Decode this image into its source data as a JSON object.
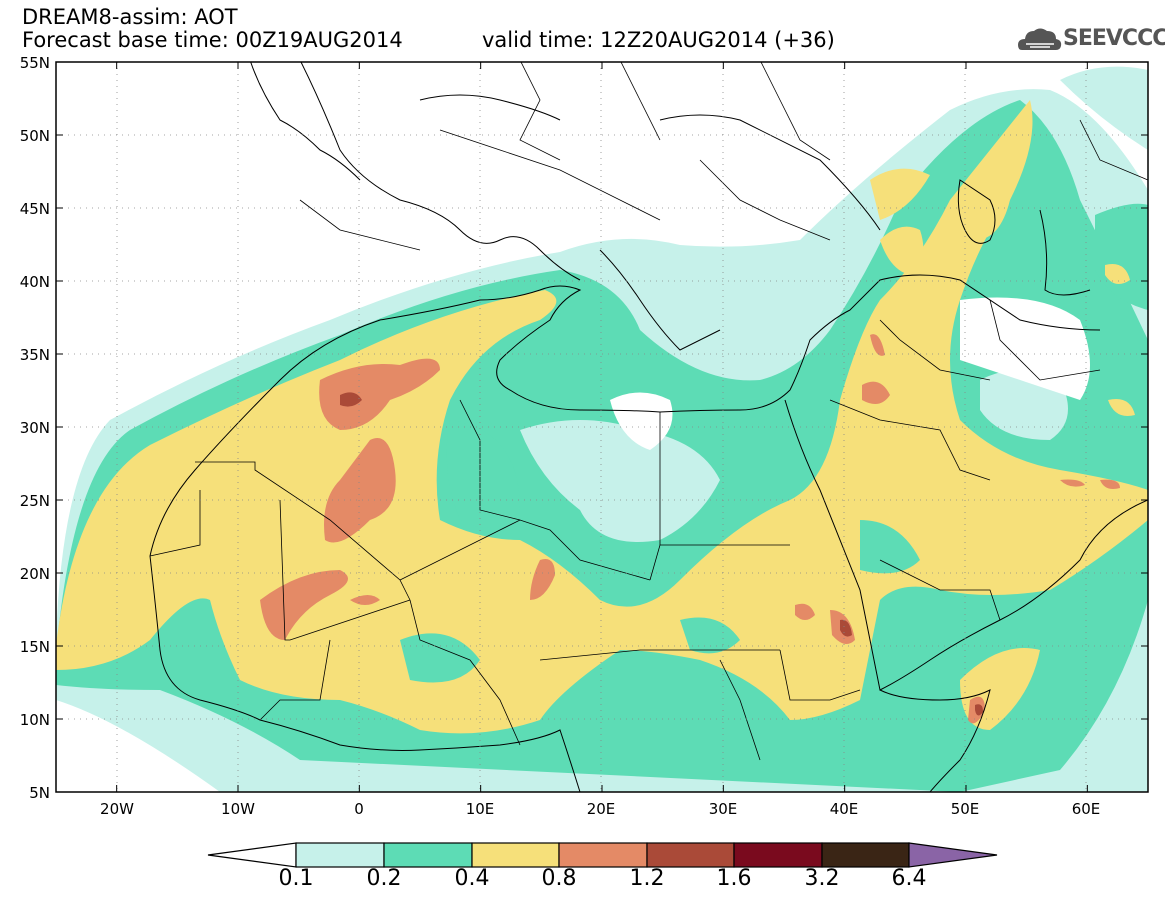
{
  "header": {
    "title_line1": "DREAM8-assim: AOT",
    "title_line2": "Forecast base time: 00Z19AUG2014",
    "valid_time": "valid time: 12Z20AUG2014 (+36)",
    "logo_text": "SEEVCCC"
  },
  "map": {
    "lat_labels": [
      "55N",
      "50N",
      "45N",
      "40N",
      "35N",
      "30N",
      "25N",
      "20N",
      "15N",
      "10N",
      "5N"
    ],
    "lon_labels": [
      "20W",
      "10W",
      "0",
      "10E",
      "20E",
      "30E",
      "40E",
      "50E",
      "60E"
    ],
    "extent": {
      "lon_min": -25,
      "lon_max": 65,
      "lat_min": 5,
      "lat_max": 55
    }
  },
  "colorbar": {
    "labels": [
      "0.1",
      "0.2",
      "0.4",
      "0.8",
      "1.2",
      "1.6",
      "3.2",
      "6.4"
    ],
    "colors": [
      "#ffffff",
      "#c6f1ea",
      "#5ddcb5",
      "#f6e07a",
      "#e48a66",
      "#aa4a38",
      "#7a0a1e",
      "#3a2515",
      "#8a64a6"
    ]
  }
}
